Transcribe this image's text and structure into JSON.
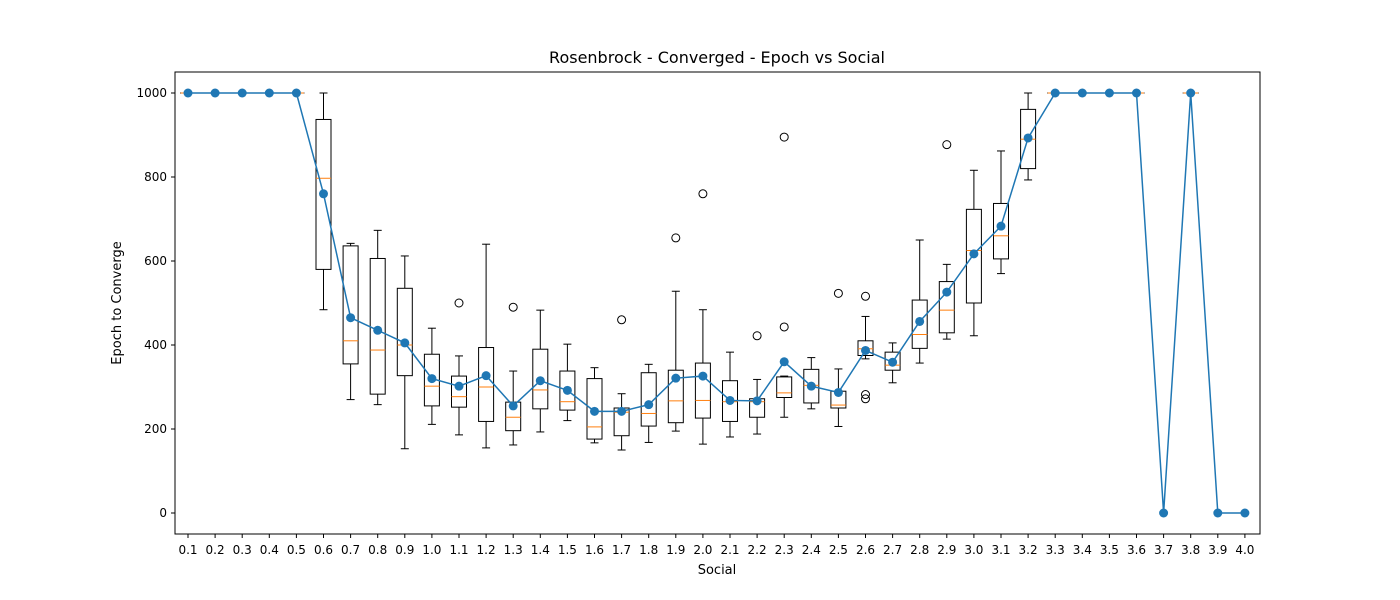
{
  "chart_data": {
    "type": "box+line",
    "title": "Rosenbrock - Converged - Epoch vs Social",
    "xlabel": "Social",
    "ylabel": "Epoch to Converge",
    "ylim": [
      -50,
      1050
    ],
    "yticks": [
      0,
      200,
      400,
      600,
      800,
      1000
    ],
    "categories": [
      "0.1",
      "0.2",
      "0.3",
      "0.4",
      "0.5",
      "0.6",
      "0.7",
      "0.8",
      "0.9",
      "1.0",
      "1.1",
      "1.2",
      "1.3",
      "1.4",
      "1.5",
      "1.6",
      "1.7",
      "1.8",
      "1.9",
      "2.0",
      "2.1",
      "2.2",
      "2.3",
      "2.4",
      "2.5",
      "2.6",
      "2.7",
      "2.8",
      "2.9",
      "3.0",
      "3.1",
      "3.2",
      "3.3",
      "3.4",
      "3.5",
      "3.6",
      "3.7",
      "3.8",
      "3.9",
      "4.0"
    ],
    "mean_values": [
      1000,
      1000,
      1000,
      1000,
      1000,
      760,
      465,
      435,
      405,
      320,
      302,
      327,
      255,
      315,
      292,
      242,
      242,
      258,
      321,
      326,
      268,
      267,
      360,
      302,
      287,
      387,
      359,
      456,
      526,
      617,
      683,
      893,
      1000,
      1000,
      1000,
      1000,
      0,
      1000,
      0,
      0
    ],
    "boxes": [
      {
        "min": 1000,
        "q1": 1000,
        "median": 1000,
        "q3": 1000,
        "max": 1000,
        "outliers": []
      },
      {
        "min": 1000,
        "q1": 1000,
        "median": 1000,
        "q3": 1000,
        "max": 1000,
        "outliers": []
      },
      {
        "min": 1000,
        "q1": 1000,
        "median": 1000,
        "q3": 1000,
        "max": 1000,
        "outliers": []
      },
      {
        "min": 1000,
        "q1": 1000,
        "median": 1000,
        "q3": 1000,
        "max": 1000,
        "outliers": []
      },
      {
        "min": 1000,
        "q1": 1000,
        "median": 1000,
        "q3": 1000,
        "max": 1000,
        "outliers": []
      },
      {
        "min": 484,
        "q1": 580,
        "median": 797,
        "q3": 937,
        "max": 1000,
        "outliers": []
      },
      {
        "min": 270,
        "q1": 355,
        "median": 410,
        "q3": 636,
        "max": 642,
        "outliers": []
      },
      {
        "min": 258,
        "q1": 283,
        "median": 388,
        "q3": 606,
        "max": 673,
        "outliers": []
      },
      {
        "min": 153,
        "q1": 327,
        "median": 400,
        "q3": 535,
        "max": 612,
        "outliers": []
      },
      {
        "min": 211,
        "q1": 255,
        "median": 302,
        "q3": 378,
        "max": 440,
        "outliers": []
      },
      {
        "min": 186,
        "q1": 252,
        "median": 277,
        "q3": 326,
        "max": 374,
        "outliers": [
          500
        ]
      },
      {
        "min": 155,
        "q1": 218,
        "median": 300,
        "q3": 394,
        "max": 640,
        "outliers": []
      },
      {
        "min": 162,
        "q1": 196,
        "median": 228,
        "q3": 264,
        "max": 338,
        "outliers": [
          490
        ]
      },
      {
        "min": 193,
        "q1": 248,
        "median": 293,
        "q3": 390,
        "max": 483,
        "outliers": []
      },
      {
        "min": 220,
        "q1": 245,
        "median": 265,
        "q3": 338,
        "max": 402,
        "outliers": []
      },
      {
        "min": 167,
        "q1": 176,
        "median": 205,
        "q3": 320,
        "max": 346,
        "outliers": []
      },
      {
        "min": 150,
        "q1": 184,
        "median": 240,
        "q3": 250,
        "max": 284,
        "outliers": [
          460
        ]
      },
      {
        "min": 168,
        "q1": 207,
        "median": 237,
        "q3": 334,
        "max": 354,
        "outliers": []
      },
      {
        "min": 195,
        "q1": 215,
        "median": 267,
        "q3": 340,
        "max": 528,
        "outliers": [
          655
        ]
      },
      {
        "min": 164,
        "q1": 226,
        "median": 268,
        "q3": 357,
        "max": 484,
        "outliers": [
          760
        ]
      },
      {
        "min": 181,
        "q1": 218,
        "median": 265,
        "q3": 315,
        "max": 383,
        "outliers": []
      },
      {
        "min": 188,
        "q1": 228,
        "median": 265,
        "q3": 272,
        "max": 318,
        "outliers": [
          422
        ]
      },
      {
        "min": 228,
        "q1": 275,
        "median": 286,
        "q3": 324,
        "max": 326,
        "outliers": [
          443,
          895
        ]
      },
      {
        "min": 248,
        "q1": 262,
        "median": 304,
        "q3": 342,
        "max": 370,
        "outliers": []
      },
      {
        "min": 206,
        "q1": 250,
        "median": 257,
        "q3": 290,
        "max": 343,
        "outliers": [
          523
        ]
      },
      {
        "min": 367,
        "q1": 375,
        "median": 391,
        "q3": 410,
        "max": 468,
        "outliers": [
          516,
          282,
          272
        ]
      },
      {
        "min": 310,
        "q1": 340,
        "median": 352,
        "q3": 383,
        "max": 405,
        "outliers": []
      },
      {
        "min": 357,
        "q1": 392,
        "median": 425,
        "q3": 507,
        "max": 650,
        "outliers": []
      },
      {
        "min": 414,
        "q1": 429,
        "median": 483,
        "q3": 551,
        "max": 592,
        "outliers": [
          877
        ]
      },
      {
        "min": 422,
        "q1": 500,
        "median": 625,
        "q3": 723,
        "max": 816,
        "outliers": []
      },
      {
        "min": 570,
        "q1": 605,
        "median": 660,
        "q3": 737,
        "max": 862,
        "outliers": []
      },
      {
        "min": 793,
        "q1": 820,
        "median": 890,
        "q3": 961,
        "max": 1000,
        "outliers": []
      },
      {
        "min": 1000,
        "q1": 1000,
        "median": 1000,
        "q3": 1000,
        "max": 1000,
        "outliers": []
      },
      {
        "min": 1000,
        "q1": 1000,
        "median": 1000,
        "q3": 1000,
        "max": 1000,
        "outliers": []
      },
      {
        "min": 1000,
        "q1": 1000,
        "median": 1000,
        "q3": 1000,
        "max": 1000,
        "outliers": []
      },
      {
        "min": 1000,
        "q1": 1000,
        "median": 1000,
        "q3": 1000,
        "max": 1000,
        "outliers": []
      },
      null,
      {
        "min": 1000,
        "q1": 1000,
        "median": 1000,
        "q3": 1000,
        "max": 1000,
        "outliers": []
      },
      null,
      null
    ],
    "colors": {
      "box": "#000000",
      "median": "#ff7f0e",
      "mean_line": "#1f77b4",
      "outlier": "#000000"
    },
    "grid": false,
    "legend": "none"
  }
}
